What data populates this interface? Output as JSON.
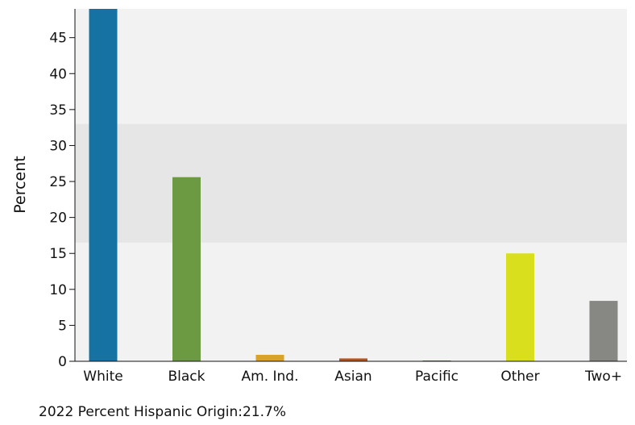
{
  "chart_data": {
    "type": "bar",
    "title": "",
    "xlabel": "",
    "ylabel": "Percent",
    "ylim": [
      0,
      49
    ],
    "yticks": [
      0,
      5,
      10,
      15,
      20,
      25,
      30,
      35,
      40,
      45
    ],
    "categories": [
      "White",
      "Black",
      "Am. Ind.",
      "Asian",
      "Pacific",
      "Other",
      "Two+"
    ],
    "values": [
      49.0,
      25.6,
      0.9,
      0.4,
      0.1,
      15.0,
      8.4
    ],
    "colors": [
      "#1572a3",
      "#6b9a42",
      "#dba228",
      "#b5531e",
      "#3f7a2e",
      "#d9df1d",
      "#878784"
    ],
    "background": {
      "outer": "#f2f2f2",
      "band": "#e6e6e6",
      "band_range": [
        16.5,
        33
      ]
    },
    "grid": false,
    "legend": "none"
  },
  "footnote": "2022 Percent Hispanic Origin:21.7%"
}
